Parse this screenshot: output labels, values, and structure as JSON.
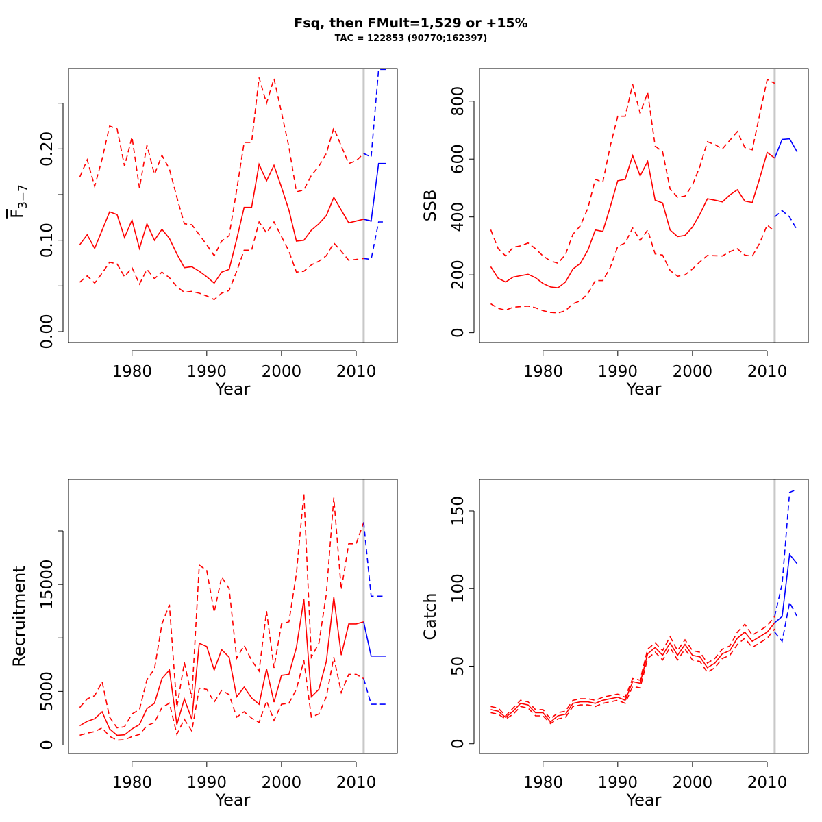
{
  "title": "Fsq, then FMult=1,529 or +15%",
  "subtitle": "TAC = 122853 (90770;162397)",
  "colors": {
    "history": "#ff0000",
    "forecast": "#0000ff",
    "divider": "#c8c8c8"
  },
  "chart_data": [
    {
      "type": "line",
      "ylabel_main": "F",
      "ylabel_sub": "3−7",
      "xlabel": "Year",
      "xlim": [
        1971.5,
        2015.5
      ],
      "ylim": [
        -0.012,
        0.288
      ],
      "xticks": [
        1980,
        1990,
        2000,
        2010
      ],
      "xtick_labels": [
        "1980",
        "1990",
        "2000",
        "2010"
      ],
      "yticks": [
        0.0,
        0.05,
        0.1,
        0.15,
        0.2,
        0.25
      ],
      "ytick_labels": [
        "0.00",
        "",
        "0.10",
        "",
        "0.20",
        ""
      ],
      "divider_x": 2011,
      "series": [
        {
          "role": "history",
          "style": "solid",
          "x_start": 1973,
          "values": [
            0.095,
            0.106,
            0.091,
            0.111,
            0.131,
            0.128,
            0.103,
            0.122,
            0.091,
            0.118,
            0.1,
            0.112,
            0.102,
            0.085,
            0.07,
            0.071,
            0.066,
            0.06,
            0.053,
            0.065,
            0.068,
            0.101,
            0.136,
            0.136,
            0.183,
            0.165,
            0.182,
            0.158,
            0.133,
            0.099,
            0.1,
            0.111,
            0.118,
            0.127,
            0.147,
            0.133,
            0.119,
            0.121,
            0.123,
            0.121
          ]
        },
        {
          "role": "history",
          "style": "dashed",
          "x_start": 1973,
          "values": [
            0.169,
            0.188,
            0.159,
            0.189,
            0.225,
            0.222,
            0.181,
            0.213,
            0.157,
            0.204,
            0.172,
            0.193,
            0.178,
            0.147,
            0.118,
            0.117,
            0.106,
            0.095,
            0.083,
            0.099,
            0.105,
            0.155,
            0.207,
            0.207,
            0.278,
            0.25,
            0.277,
            0.24,
            0.202,
            0.153,
            0.155,
            0.171,
            0.181,
            0.195,
            0.223,
            0.203,
            0.184,
            0.187,
            0.195
          ]
        },
        {
          "role": "history",
          "style": "dashed",
          "x_start": 1973,
          "values": [
            0.054,
            0.061,
            0.053,
            0.064,
            0.076,
            0.074,
            0.06,
            0.07,
            0.052,
            0.068,
            0.058,
            0.065,
            0.059,
            0.049,
            0.043,
            0.044,
            0.042,
            0.039,
            0.035,
            0.042,
            0.045,
            0.066,
            0.089,
            0.089,
            0.12,
            0.108,
            0.12,
            0.104,
            0.088,
            0.065,
            0.066,
            0.073,
            0.077,
            0.083,
            0.097,
            0.088,
            0.078,
            0.079,
            0.08
          ]
        },
        {
          "role": "forecast",
          "style": "solid",
          "x": [
            2011,
            2012,
            2013,
            2014
          ],
          "values": [
            0.123,
            0.121,
            0.184,
            0.184
          ]
        },
        {
          "role": "forecast",
          "style": "dashed",
          "x": [
            2011,
            2012,
            2013,
            2014
          ],
          "values": [
            0.195,
            0.191,
            0.287,
            0.287
          ]
        },
        {
          "role": "forecast",
          "style": "dashed",
          "x": [
            2011,
            2012,
            2013,
            2014
          ],
          "values": [
            0.08,
            0.079,
            0.12,
            0.12
          ]
        }
      ]
    },
    {
      "type": "line",
      "ylabel": "SSB",
      "xlabel": "Year",
      "xlim": [
        1971.5,
        2015.5
      ],
      "ylim": [
        -34,
        913
      ],
      "xticks": [
        1980,
        1990,
        2000,
        2010
      ],
      "xtick_labels": [
        "1980",
        "1990",
        "2000",
        "2010"
      ],
      "yticks": [
        0,
        200,
        400,
        600,
        800
      ],
      "ytick_labels": [
        "0",
        "200",
        "400",
        "600",
        "800"
      ],
      "divider_x": 2011,
      "series": [
        {
          "role": "history",
          "style": "solid",
          "x_start": 1973,
          "values": [
            228,
            188,
            175,
            192,
            197,
            202,
            190,
            170,
            158,
            155,
            175,
            220,
            240,
            285,
            355,
            350,
            435,
            525,
            530,
            612,
            542,
            592,
            458,
            448,
            355,
            332,
            336,
            365,
            410,
            463,
            458,
            452,
            476,
            494,
            455,
            450,
            534,
            623,
            603
          ]
        },
        {
          "role": "history",
          "style": "dashed",
          "x_start": 1973,
          "values": [
            356,
            290,
            265,
            295,
            300,
            310,
            290,
            265,
            248,
            240,
            270,
            340,
            370,
            430,
            530,
            520,
            645,
            748,
            748,
            858,
            758,
            830,
            645,
            625,
            497,
            468,
            472,
            510,
            575,
            660,
            650,
            635,
            665,
            695,
            640,
            632,
            755,
            875,
            862
          ]
        },
        {
          "role": "history",
          "style": "dashed",
          "x_start": 1973,
          "values": [
            100,
            84,
            78,
            88,
            90,
            92,
            86,
            76,
            70,
            68,
            76,
            100,
            110,
            135,
            180,
            180,
            225,
            298,
            310,
            362,
            318,
            355,
            272,
            268,
            215,
            195,
            200,
            220,
            245,
            267,
            266,
            265,
            280,
            290,
            268,
            264,
            310,
            372,
            350
          ]
        },
        {
          "role": "forecast",
          "style": "solid",
          "x": [
            2011,
            2012,
            2013,
            2014
          ],
          "values": [
            603,
            668,
            670,
            625
          ]
        },
        {
          "role": "forecast",
          "style": "dashed",
          "x": [
            2011,
            2012,
            2013,
            2014
          ],
          "values": [
            400,
            422,
            400,
            355
          ]
        }
      ]
    },
    {
      "type": "line",
      "ylabel": "Recruitment",
      "xlabel": "Year",
      "xlim": [
        1971.5,
        2015.5
      ],
      "ylim": [
        -800,
        24800
      ],
      "xticks": [
        1980,
        1990,
        2000,
        2010
      ],
      "xtick_labels": [
        "1980",
        "1990",
        "2000",
        "2010"
      ],
      "yticks": [
        0,
        5000,
        10000,
        15000,
        20000
      ],
      "ytick_labels": [
        "0",
        "5000",
        "",
        "15000",
        ""
      ],
      "divider_x": 2011,
      "series": [
        {
          "role": "history",
          "style": "solid",
          "x_start": 1973,
          "values": [
            1800,
            2200,
            2450,
            3100,
            1500,
            900,
            950,
            1500,
            1900,
            3400,
            3900,
            6200,
            7000,
            1900,
            4300,
            2400,
            9500,
            9200,
            7000,
            8900,
            8200,
            4500,
            5400,
            4400,
            3800,
            7100,
            4000,
            6500,
            6600,
            9100,
            13600,
            4500,
            5200,
            7800,
            13800,
            8400,
            11300,
            11300,
            11500
          ]
        },
        {
          "role": "history",
          "style": "dashed",
          "x_start": 1973,
          "values": [
            3500,
            4300,
            4600,
            5900,
            2600,
            1600,
            1700,
            2900,
            3300,
            6100,
            7100,
            11300,
            13100,
            3500,
            7700,
            4400,
            16800,
            16300,
            12400,
            15700,
            14600,
            8100,
            9300,
            7900,
            6900,
            12500,
            7200,
            11300,
            11500,
            16000,
            23500,
            8200,
            9500,
            14100,
            23100,
            14500,
            18800,
            18800,
            20800
          ]
        },
        {
          "role": "history",
          "style": "dashed",
          "x_start": 1973,
          "values": [
            900,
            1100,
            1250,
            1600,
            800,
            450,
            480,
            780,
            980,
            1800,
            2100,
            3500,
            3900,
            1000,
            2400,
            1300,
            5300,
            5200,
            4000,
            5100,
            4700,
            2600,
            3100,
            2500,
            2100,
            4100,
            2300,
            3800,
            3900,
            5200,
            7900,
            2600,
            2900,
            4500,
            8200,
            4900,
            6600,
            6600,
            6200
          ]
        },
        {
          "role": "forecast",
          "style": "solid",
          "x": [
            2011,
            2012,
            2013,
            2014
          ],
          "values": [
            11500,
            8300,
            8300,
            8300
          ]
        },
        {
          "role": "forecast",
          "style": "dashed",
          "x": [
            2011,
            2012,
            2013,
            2014
          ],
          "values": [
            20800,
            13900,
            13900,
            13900
          ]
        },
        {
          "role": "forecast",
          "style": "dashed",
          "x": [
            2011,
            2012,
            2013,
            2014
          ],
          "values": [
            6200,
            3800,
            3800,
            3800
          ]
        }
      ]
    },
    {
      "type": "line",
      "ylabel": "Catch",
      "xlabel": "Year",
      "xlim": [
        1971.5,
        2015.5
      ],
      "ylim": [
        -6.3,
        170.3
      ],
      "xticks": [
        1980,
        1990,
        2000,
        2010
      ],
      "xtick_labels": [
        "1980",
        "1990",
        "2000",
        "2010"
      ],
      "yticks": [
        0,
        50,
        100,
        150
      ],
      "ytick_labels": [
        "0",
        "50",
        "100",
        "150"
      ],
      "divider_x": 2011,
      "series": [
        {
          "role": "history",
          "style": "solid",
          "x_start": 1973,
          "values": [
            22,
            21,
            17,
            21,
            26,
            25,
            20,
            20,
            14,
            18,
            19,
            26,
            27,
            27,
            26,
            28,
            29,
            30,
            28,
            40,
            39,
            58,
            62,
            57,
            65,
            57,
            64,
            57,
            56,
            49,
            52,
            58,
            60,
            68,
            72,
            66,
            69,
            72,
            78
          ]
        },
        {
          "role": "history",
          "style": "dashed",
          "x_start": 1973,
          "values": [
            24,
            23,
            18,
            23,
            28,
            27,
            22,
            22,
            16,
            20,
            21,
            28,
            29,
            29,
            28,
            30,
            31,
            32,
            30,
            42,
            41,
            61,
            65,
            60,
            69,
            60,
            67,
            60,
            59,
            52,
            55,
            61,
            63,
            72,
            77,
            70,
            73,
            76,
            82
          ]
        },
        {
          "role": "history",
          "style": "dashed",
          "x_start": 1973,
          "values": [
            20,
            19,
            16,
            19,
            24,
            23,
            18,
            18,
            13,
            16,
            17,
            24,
            25,
            25,
            24,
            26,
            27,
            28,
            26,
            37,
            36,
            55,
            59,
            54,
            62,
            54,
            61,
            54,
            53,
            46,
            49,
            55,
            57,
            64,
            68,
            62,
            65,
            68,
            74
          ]
        },
        {
          "role": "forecast",
          "style": "solid",
          "x": [
            2011,
            2012,
            2013,
            2014
          ],
          "values": [
            78,
            82,
            122,
            116
          ]
        },
        {
          "role": "forecast",
          "style": "dashed",
          "x": [
            2011,
            2012,
            2013,
            2014
          ],
          "values": [
            82,
            103,
            162,
            164
          ]
        },
        {
          "role": "forecast",
          "style": "dashed",
          "x": [
            2011,
            2012,
            2013,
            2014
          ],
          "values": [
            72,
            66,
            91,
            82
          ]
        }
      ]
    }
  ]
}
